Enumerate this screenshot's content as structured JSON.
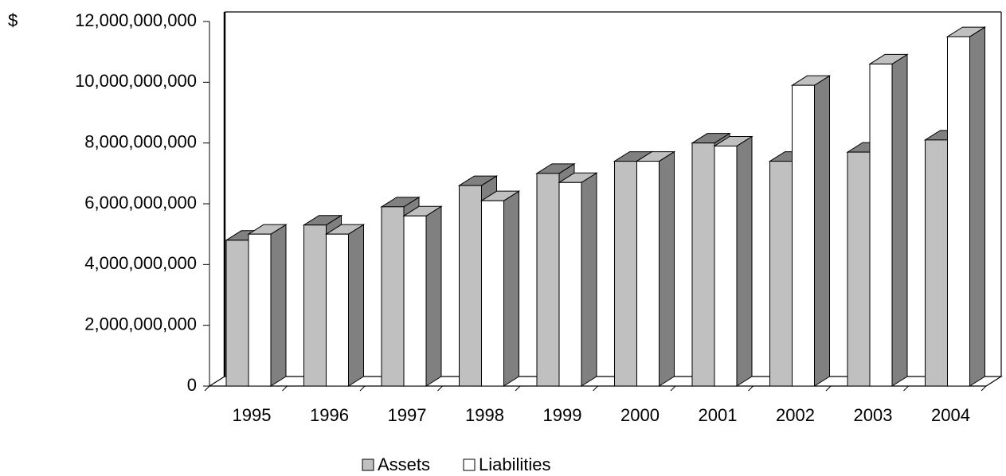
{
  "chart_data": {
    "type": "bar3d",
    "ylabel": "$",
    "categories": [
      "1995",
      "1996",
      "1997",
      "1998",
      "1999",
      "2000",
      "2001",
      "2002",
      "2003",
      "2004"
    ],
    "series": [
      {
        "name": "Assets",
        "color": "#c0c0c0",
        "values": [
          4800000000,
          5300000000,
          5900000000,
          6600000000,
          7000000000,
          7400000000,
          8000000000,
          7400000000,
          7700000000,
          8100000000
        ]
      },
      {
        "name": "Liabilities",
        "color": "#ffffff",
        "values": [
          5000000000,
          5000000000,
          5600000000,
          6100000000,
          6700000000,
          7400000000,
          7900000000,
          9900000000,
          10600000000,
          11500000000
        ]
      }
    ],
    "ylim": [
      0,
      12000000000
    ],
    "yticks": [
      0,
      {
        "value": 2000000000,
        "label": "2,000,000,000"
      },
      {
        "value": 4000000000,
        "label": "4,000,000,000"
      },
      {
        "value": 6000000000,
        "label": "6,000,000,000"
      },
      {
        "value": 8000000000,
        "label": "8,000,000,000"
      },
      {
        "value": 10000000000,
        "label": "10,000,000,000"
      },
      {
        "value": 12000000000,
        "label": "12,000,000,000"
      }
    ],
    "legend": "bottom"
  }
}
